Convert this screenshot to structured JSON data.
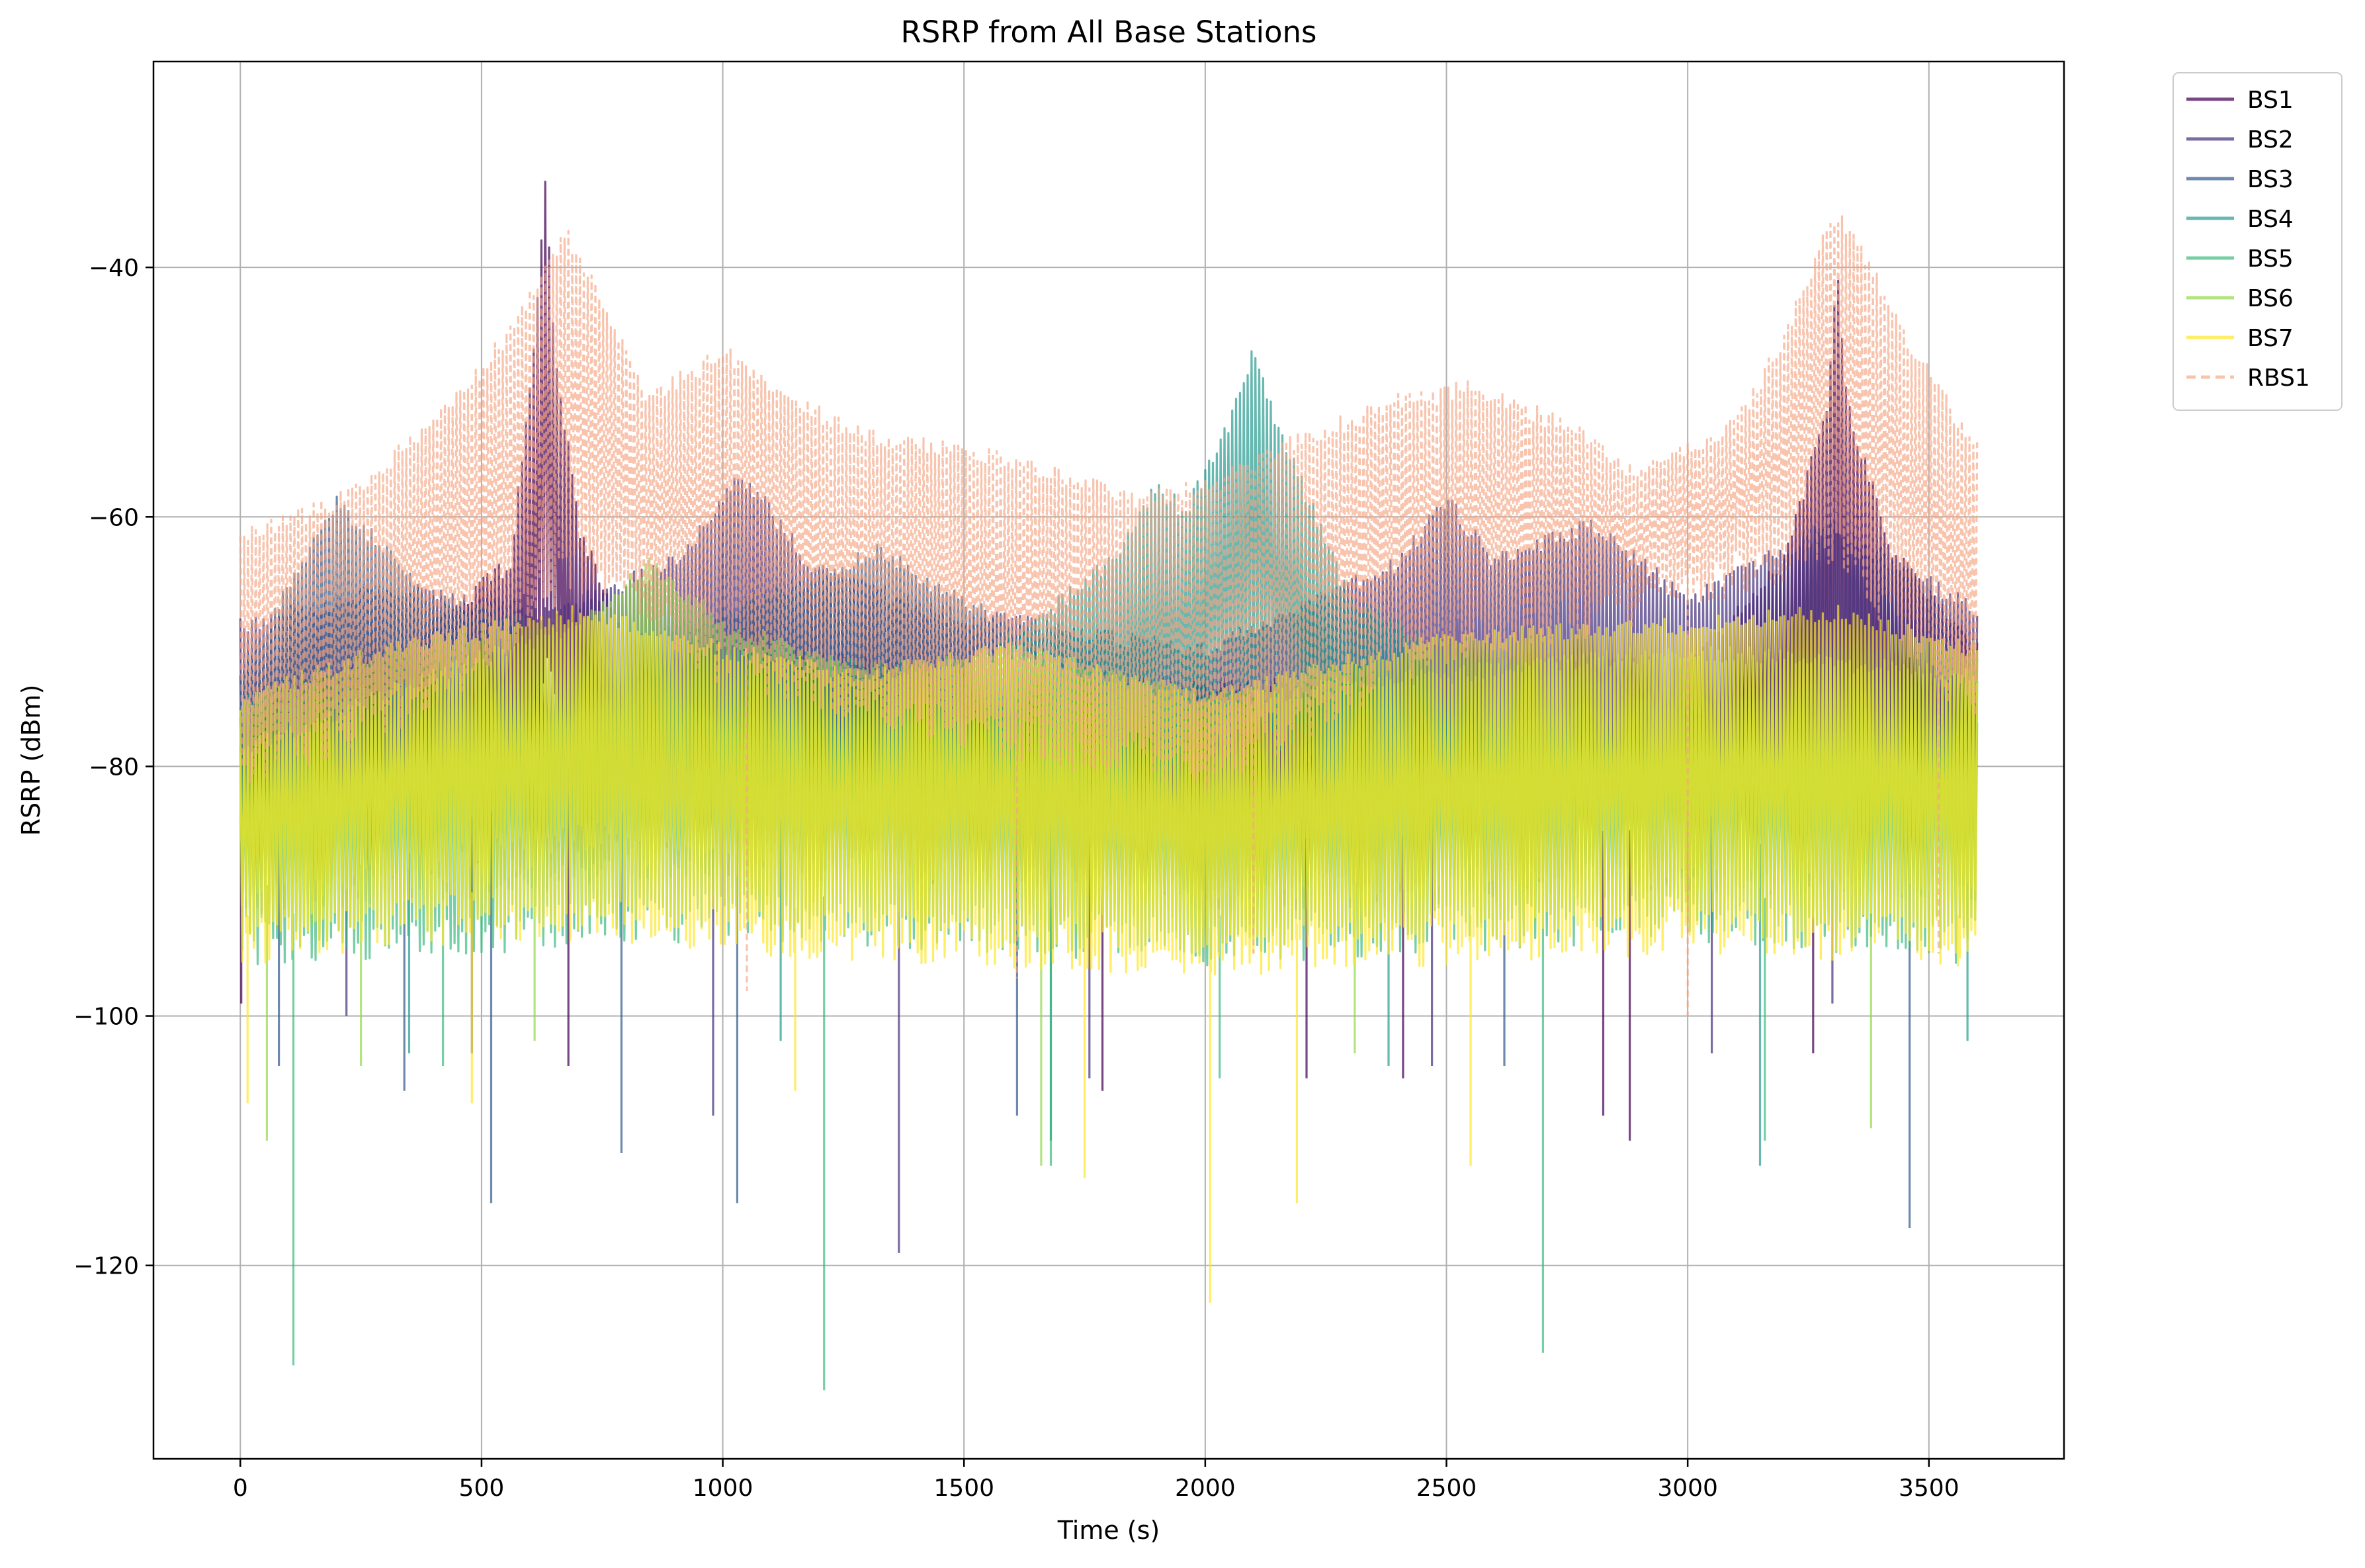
{
  "chart_data": {
    "type": "line",
    "title": "RSRP from All Base Stations",
    "xlabel": "Time (s)",
    "ylabel": "RSRP (dBm)",
    "xlim": [
      -180,
      3780
    ],
    "ylim": [
      -135.5,
      -23.5
    ],
    "x_ticks": [
      0,
      500,
      1000,
      1500,
      2000,
      2500,
      3000,
      3500
    ],
    "y_ticks": [
      -120,
      -100,
      -80,
      -60,
      -40
    ],
    "grid": true,
    "legend_position": "outside-top-right",
    "sample_step_s": 4,
    "series": [
      {
        "name": "BS1",
        "color": "#440154",
        "linestyle": "solid",
        "opacity": 0.72,
        "upper_envelope": [
          [
            0,
            -75
          ],
          [
            300,
            -71
          ],
          [
            560,
            -63
          ],
          [
            610,
            -45
          ],
          [
            632,
            -32
          ],
          [
            650,
            -45
          ],
          [
            700,
            -60
          ],
          [
            800,
            -69
          ],
          [
            1000,
            -70
          ],
          [
            1500,
            -72
          ],
          [
            2000,
            -73
          ],
          [
            2500,
            -72
          ],
          [
            3000,
            -71
          ],
          [
            3200,
            -63
          ],
          [
            3290,
            -50
          ],
          [
            3310,
            -40
          ],
          [
            3330,
            -50
          ],
          [
            3420,
            -62
          ],
          [
            3600,
            -70
          ]
        ],
        "lower_envelope": [
          [
            0,
            -86
          ],
          [
            300,
            -85
          ],
          [
            600,
            -80
          ],
          [
            640,
            -68
          ],
          [
            680,
            -80
          ],
          [
            1000,
            -85
          ],
          [
            2000,
            -86
          ],
          [
            3000,
            -85
          ],
          [
            3300,
            -76
          ],
          [
            3600,
            -84
          ]
        ],
        "deep_fades": [
          [
            2,
            -99
          ],
          [
            680,
            -104
          ],
          [
            1787,
            -106
          ],
          [
            2210,
            -105
          ],
          [
            2410,
            -105
          ],
          [
            2825,
            -108
          ],
          [
            2880,
            -110
          ],
          [
            3260,
            -103
          ]
        ]
      },
      {
        "name": "BS2",
        "color": "#46327e",
        "linestyle": "solid",
        "opacity": 0.72,
        "upper_envelope": [
          [
            0,
            -68
          ],
          [
            300,
            -65
          ],
          [
            650,
            -67
          ],
          [
            900,
            -63
          ],
          [
            1040,
            -56
          ],
          [
            1180,
            -63
          ],
          [
            1450,
            -67
          ],
          [
            2000,
            -70
          ],
          [
            2400,
            -63
          ],
          [
            2500,
            -58
          ],
          [
            2600,
            -63
          ],
          [
            2800,
            -60
          ],
          [
            3000,
            -66
          ],
          [
            3300,
            -60
          ],
          [
            3600,
            -67
          ]
        ],
        "lower_envelope": [
          [
            0,
            -85
          ],
          [
            500,
            -84
          ],
          [
            1000,
            -80
          ],
          [
            1500,
            -85
          ],
          [
            2000,
            -86
          ],
          [
            2500,
            -80
          ],
          [
            3000,
            -84
          ],
          [
            3600,
            -84
          ]
        ],
        "deep_fades": [
          [
            220,
            -100
          ],
          [
            480,
            -103
          ],
          [
            980,
            -108
          ],
          [
            1365,
            -119
          ],
          [
            1760,
            -105
          ],
          [
            2470,
            -104
          ],
          [
            3050,
            -103
          ],
          [
            3300,
            -99
          ]
        ]
      },
      {
        "name": "BS3",
        "color": "#365c8d",
        "linestyle": "solid",
        "opacity": 0.72,
        "upper_envelope": [
          [
            0,
            -72
          ],
          [
            200,
            -58
          ],
          [
            400,
            -66
          ],
          [
            800,
            -70
          ],
          [
            1330,
            -62
          ],
          [
            1450,
            -65
          ],
          [
            2000,
            -76
          ],
          [
            2500,
            -70
          ],
          [
            3000,
            -72
          ],
          [
            3500,
            -69
          ],
          [
            3600,
            -71
          ]
        ],
        "lower_envelope": [
          [
            0,
            -86
          ],
          [
            200,
            -78
          ],
          [
            600,
            -85
          ],
          [
            1300,
            -80
          ],
          [
            2000,
            -88
          ],
          [
            3000,
            -86
          ],
          [
            3600,
            -86
          ]
        ],
        "deep_fades": [
          [
            80,
            -104
          ],
          [
            340,
            -106
          ],
          [
            520,
            -115
          ],
          [
            790,
            -111
          ],
          [
            1030,
            -115
          ],
          [
            1610,
            -108
          ],
          [
            2620,
            -104
          ],
          [
            3460,
            -117
          ]
        ]
      },
      {
        "name": "BS4",
        "color": "#1f968b",
        "linestyle": "solid",
        "opacity": 0.68,
        "upper_envelope": [
          [
            0,
            -74
          ],
          [
            600,
            -72
          ],
          [
            1000,
            -70
          ],
          [
            1500,
            -72
          ],
          [
            1800,
            -63
          ],
          [
            1900,
            -57
          ],
          [
            1960,
            -59
          ],
          [
            2050,
            -52
          ],
          [
            2100,
            -46
          ],
          [
            2150,
            -52
          ],
          [
            2300,
            -66
          ],
          [
            2500,
            -70
          ],
          [
            3000,
            -74
          ],
          [
            3600,
            -72
          ]
        ],
        "lower_envelope": [
          [
            0,
            -88
          ],
          [
            1000,
            -85
          ],
          [
            1900,
            -80
          ],
          [
            2100,
            -72
          ],
          [
            2300,
            -82
          ],
          [
            3000,
            -86
          ],
          [
            3600,
            -87
          ]
        ],
        "deep_fades": [
          [
            350,
            -103
          ],
          [
            1120,
            -102
          ],
          [
            1680,
            -110
          ],
          [
            2380,
            -104
          ],
          [
            3150,
            -112
          ],
          [
            3580,
            -102
          ]
        ]
      },
      {
        "name": "BS5",
        "color": "#35b779",
        "linestyle": "solid",
        "opacity": 0.68,
        "upper_envelope": [
          [
            0,
            -78
          ],
          [
            500,
            -74
          ],
          [
            1000,
            -75
          ],
          [
            1500,
            -76
          ],
          [
            2000,
            -78
          ],
          [
            2500,
            -76
          ],
          [
            3000,
            -74
          ],
          [
            3600,
            -76
          ]
        ],
        "lower_envelope": [
          [
            0,
            -92
          ],
          [
            1000,
            -90
          ],
          [
            2000,
            -92
          ],
          [
            3000,
            -90
          ],
          [
            3600,
            -92
          ]
        ],
        "deep_fades": [
          [
            110,
            -128
          ],
          [
            420,
            -104
          ],
          [
            1210,
            -130
          ],
          [
            1680,
            -112
          ],
          [
            2030,
            -105
          ],
          [
            2700,
            -127
          ],
          [
            3160,
            -110
          ]
        ]
      },
      {
        "name": "BS6",
        "color": "#8fd744",
        "linestyle": "solid",
        "opacity": 0.68,
        "upper_envelope": [
          [
            0,
            -78
          ],
          [
            400,
            -72
          ],
          [
            700,
            -68
          ],
          [
            850,
            -63
          ],
          [
            1000,
            -68
          ],
          [
            1300,
            -72
          ],
          [
            1600,
            -70
          ],
          [
            2000,
            -74
          ],
          [
            2500,
            -72
          ],
          [
            3000,
            -70
          ],
          [
            3600,
            -72
          ]
        ],
        "lower_envelope": [
          [
            0,
            -90
          ],
          [
            700,
            -84
          ],
          [
            1200,
            -88
          ],
          [
            2000,
            -90
          ],
          [
            3000,
            -88
          ],
          [
            3600,
            -89
          ]
        ],
        "deep_fades": [
          [
            55,
            -110
          ],
          [
            250,
            -104
          ],
          [
            610,
            -102
          ],
          [
            1660,
            -112
          ],
          [
            2310,
            -103
          ],
          [
            3380,
            -109
          ]
        ]
      },
      {
        "name": "BS7",
        "color": "#fde725",
        "linestyle": "solid",
        "opacity": 0.7,
        "upper_envelope": [
          [
            0,
            -74
          ],
          [
            300,
            -70
          ],
          [
            700,
            -67
          ],
          [
            1000,
            -70
          ],
          [
            1300,
            -72
          ],
          [
            1600,
            -70
          ],
          [
            2000,
            -74
          ],
          [
            2500,
            -69
          ],
          [
            3000,
            -68
          ],
          [
            3300,
            -67
          ],
          [
            3600,
            -70
          ]
        ],
        "lower_envelope": [
          [
            0,
            -92
          ],
          [
            500,
            -90
          ],
          [
            1000,
            -91
          ],
          [
            2000,
            -93
          ],
          [
            3000,
            -91
          ],
          [
            3600,
            -92
          ]
        ],
        "deep_fades": [
          [
            15,
            -107
          ],
          [
            480,
            -107
          ],
          [
            1150,
            -106
          ],
          [
            1750,
            -113
          ],
          [
            2010,
            -123
          ],
          [
            2190,
            -115
          ],
          [
            2550,
            -112
          ],
          [
            3560,
            -96
          ]
        ]
      },
      {
        "name": "RBS1",
        "color": "#f4a582",
        "linestyle": "dashed",
        "opacity": 0.65,
        "upper_envelope": [
          [
            0,
            -61
          ],
          [
            200,
            -58
          ],
          [
            400,
            -52
          ],
          [
            550,
            -45
          ],
          [
            650,
            -38
          ],
          [
            680,
            -37
          ],
          [
            750,
            -42
          ],
          [
            850,
            -50
          ],
          [
            1000,
            -46
          ],
          [
            1150,
            -50
          ],
          [
            1300,
            -53
          ],
          [
            1500,
            -54
          ],
          [
            1700,
            -56
          ],
          [
            1850,
            -58
          ],
          [
            2000,
            -57
          ],
          [
            2200,
            -53
          ],
          [
            2400,
            -50
          ],
          [
            2550,
            -49
          ],
          [
            2750,
            -52
          ],
          [
            2900,
            -56
          ],
          [
            3100,
            -52
          ],
          [
            3200,
            -45
          ],
          [
            3300,
            -35
          ],
          [
            3350,
            -37
          ],
          [
            3450,
            -45
          ],
          [
            3600,
            -54
          ]
        ],
        "lower_envelope": [
          [
            0,
            -78
          ],
          [
            400,
            -72
          ],
          [
            700,
            -62
          ],
          [
            1000,
            -70
          ],
          [
            1500,
            -75
          ],
          [
            2000,
            -78
          ],
          [
            2500,
            -68
          ],
          [
            3000,
            -64
          ],
          [
            3300,
            -60
          ],
          [
            3600,
            -74
          ]
        ],
        "deep_fades": [
          [
            1050,
            -98
          ],
          [
            1610,
            -97
          ],
          [
            2100,
            -95
          ],
          [
            3000,
            -100
          ],
          [
            3520,
            -95
          ]
        ]
      }
    ]
  }
}
